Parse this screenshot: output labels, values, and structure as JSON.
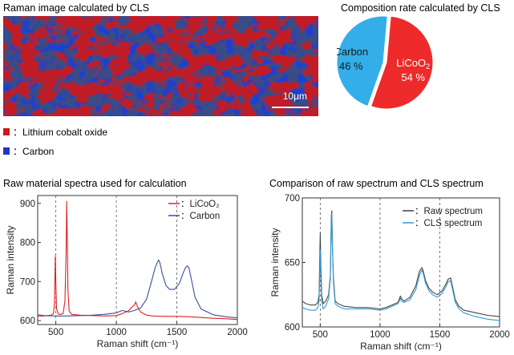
{
  "raman_image": {
    "title": "Raman image calculated by CLS",
    "scale_bar_label": "10μm"
  },
  "legend": [
    {
      "marker": "■",
      "label": "：Lithium cobalt oxide",
      "color": "#cc1a1a"
    },
    {
      "marker": "■",
      "label": "：Carbon",
      "color": "#2233cc"
    }
  ],
  "chart_data": [
    {
      "type": "pie",
      "title": "Composition rate calculated by CLS",
      "slices": [
        {
          "name": "Carbon",
          "value": 46,
          "label": "46 %",
          "color": "#33aee8"
        },
        {
          "name": "LiCoO2",
          "value": 54,
          "label": "54 %",
          "color": "#ee2a2a"
        }
      ]
    },
    {
      "type": "line",
      "title": "Raw material spectra used for calculation",
      "xlabel": "Raman shift (cm⁻¹)",
      "ylabel": "Raman intensity",
      "xlim": [
        350,
        2000
      ],
      "ylim": [
        590,
        920
      ],
      "xticks": [
        500,
        1000,
        1500,
        2000
      ],
      "yticks": [
        600,
        700,
        800,
        900
      ],
      "dashed_lines": [
        500,
        1000,
        1500
      ],
      "legend_position": "top-right",
      "series": [
        {
          "name": "：LiCoO₂",
          "color": "#dd2222",
          "x": [
            350,
            400,
            460,
            480,
            488,
            492,
            496,
            500,
            506,
            520,
            540,
            560,
            575,
            585,
            590,
            595,
            600,
            610,
            630,
            700,
            800,
            900,
            1000,
            1050,
            1100,
            1130,
            1150,
            1160,
            1170,
            1180,
            1200,
            1250,
            1300,
            1400,
            1500,
            1600,
            1700,
            1800,
            1900,
            2000
          ],
          "y": [
            612,
            612,
            614,
            618,
            640,
            700,
            765,
            700,
            630,
            617,
            616,
            618,
            650,
            780,
            905,
            800,
            680,
            625,
            616,
            614,
            613,
            612,
            613,
            618,
            625,
            635,
            640,
            648,
            640,
            632,
            622,
            614,
            612,
            611,
            611,
            610,
            608,
            606,
            605,
            603
          ]
        },
        {
          "name": "：Carbon",
          "color": "#3a4f9a",
          "x": [
            350,
            400,
            500,
            600,
            700,
            800,
            900,
            1000,
            1050,
            1100,
            1150,
            1200,
            1250,
            1290,
            1320,
            1340,
            1350,
            1360,
            1380,
            1410,
            1440,
            1480,
            1520,
            1550,
            1570,
            1585,
            1600,
            1620,
            1650,
            1700,
            1800,
            1900,
            2000
          ],
          "y": [
            615,
            613,
            612,
            612,
            613,
            614,
            616,
            620,
            626,
            622,
            626,
            632,
            655,
            700,
            735,
            750,
            755,
            748,
            720,
            690,
            680,
            680,
            695,
            720,
            735,
            740,
            735,
            705,
            660,
            630,
            615,
            610,
            607
          ]
        }
      ]
    },
    {
      "type": "line",
      "title": "Comparison of raw spectrum and CLS spectrum",
      "xlabel": "Raman shift (cm⁻¹)",
      "ylabel": "Raman intensity",
      "xlim": [
        350,
        2000
      ],
      "ylim": [
        600,
        700
      ],
      "xticks": [
        500,
        1000,
        1500,
        2000
      ],
      "yticks": [
        600,
        650,
        700
      ],
      "dashed_lines": [
        500,
        1000,
        1500
      ],
      "legend_position": "top-right",
      "series": [
        {
          "name": "：Raw spectrum",
          "color": "#444444",
          "x": [
            350,
            380,
            420,
            460,
            480,
            490,
            495,
            500,
            505,
            512,
            525,
            545,
            570,
            585,
            592,
            597,
            602,
            610,
            625,
            650,
            700,
            800,
            900,
            1000,
            1050,
            1100,
            1150,
            1170,
            1180,
            1200,
            1250,
            1300,
            1330,
            1350,
            1360,
            1380,
            1410,
            1440,
            1480,
            1520,
            1550,
            1570,
            1590,
            1605,
            1630,
            1660,
            1700,
            1800,
            1900,
            2000
          ],
          "y": [
            620,
            618,
            617,
            617,
            619,
            625,
            650,
            673,
            648,
            625,
            618,
            620,
            625,
            640,
            685,
            690,
            662,
            638,
            620,
            618,
            616,
            615,
            615,
            614,
            615,
            617,
            619,
            624,
            622,
            620,
            623,
            632,
            643,
            646,
            644,
            636,
            630,
            627,
            625,
            628,
            633,
            637,
            638,
            632,
            621,
            616,
            613,
            611,
            609,
            608
          ]
        },
        {
          "name": "：CLS spectrum",
          "color": "#2f9bd6",
          "x": [
            350,
            380,
            420,
            460,
            480,
            490,
            495,
            500,
            505,
            512,
            525,
            545,
            570,
            585,
            592,
            597,
            602,
            610,
            625,
            650,
            700,
            800,
            900,
            1000,
            1050,
            1100,
            1150,
            1170,
            1180,
            1200,
            1250,
            1300,
            1330,
            1350,
            1360,
            1380,
            1410,
            1440,
            1480,
            1520,
            1550,
            1570,
            1590,
            1605,
            1630,
            1660,
            1700,
            1800,
            1900,
            2000
          ],
          "y": [
            615,
            614,
            613,
            613,
            615,
            620,
            640,
            660,
            638,
            620,
            614,
            616,
            622,
            638,
            680,
            688,
            660,
            635,
            618,
            616,
            614,
            614,
            614,
            613,
            614,
            616,
            618,
            622,
            620,
            619,
            621,
            629,
            640,
            644,
            642,
            634,
            628,
            625,
            623,
            626,
            631,
            635,
            636,
            630,
            619,
            614,
            611,
            608,
            606,
            605
          ]
        }
      ]
    }
  ]
}
